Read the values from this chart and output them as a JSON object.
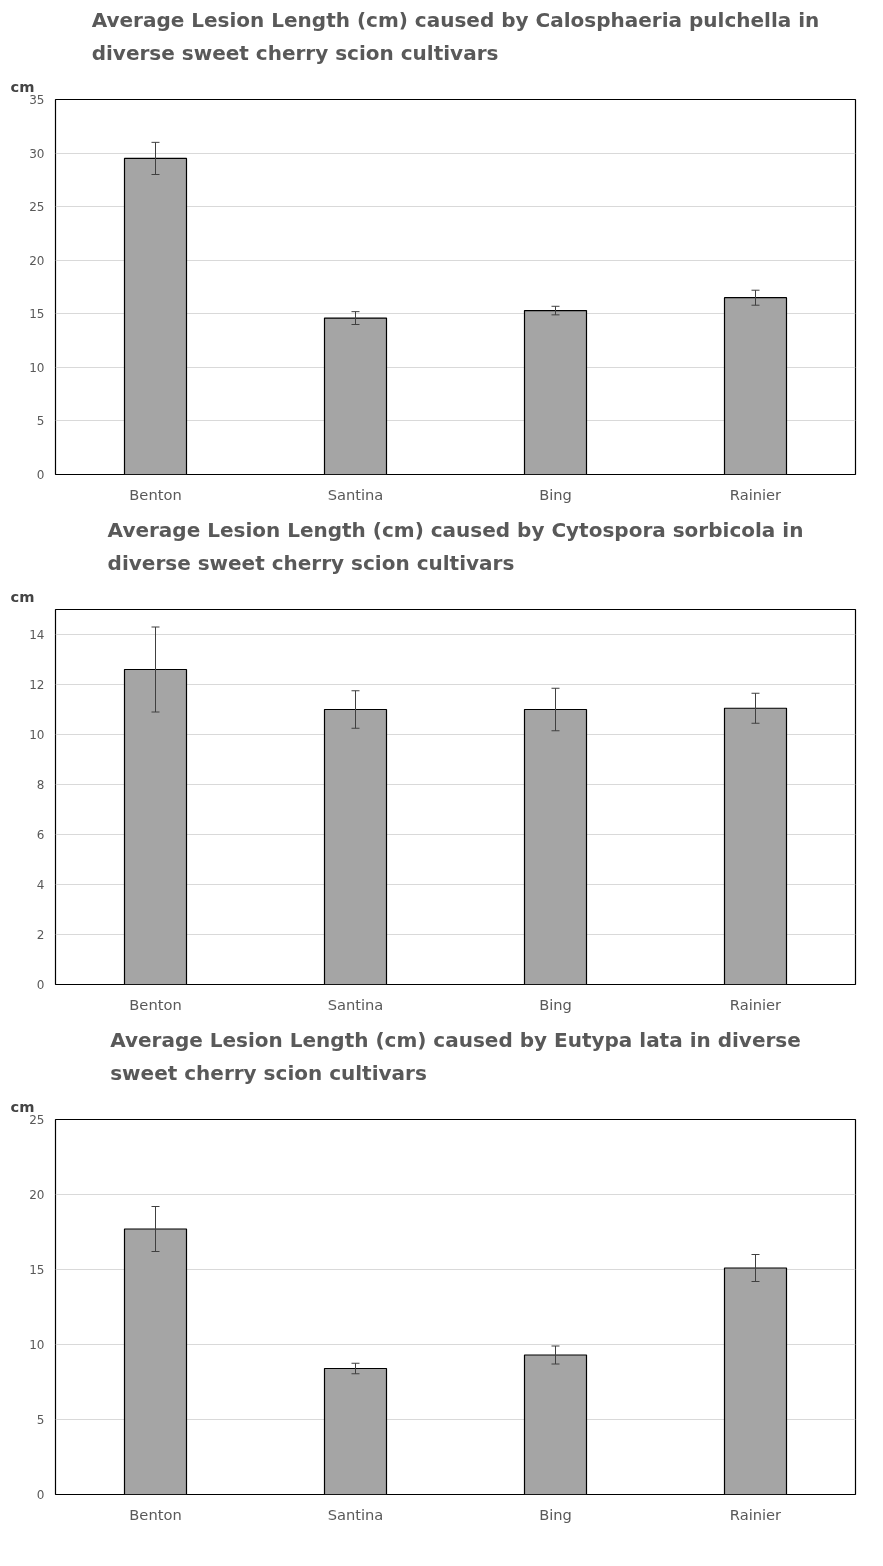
{
  "chart_data": [
    {
      "type": "bar",
      "title": "Average Lesion Length (cm) caused by Calosphaeria pulchella in diverse sweet cherry scion cultivars",
      "ylabel": "cm",
      "categories": [
        "Benton",
        "Santina",
        "Bing",
        "Rainier"
      ],
      "values": [
        29.5,
        14.6,
        15.3,
        16.5
      ],
      "errors": [
        1.5,
        0.6,
        0.4,
        0.7
      ],
      "color": "#a5a5a5",
      "ylim": [
        0,
        35
      ],
      "yticks": [
        0,
        5,
        10,
        15,
        20,
        25,
        30,
        35
      ],
      "grid": "y"
    },
    {
      "type": "bar",
      "title": "Average Lesion Length (cm) caused by Cytospora sorbicola in diverse sweet cherry scion cultivars",
      "ylabel": "cm",
      "categories": [
        "Benton",
        "Santina",
        "Bing",
        "Rainier"
      ],
      "values": [
        12.6,
        11.0,
        11.0,
        11.05
      ],
      "errors": [
        1.7,
        0.75,
        0.85,
        0.6
      ],
      "color": "#a5a5a5",
      "ylim": [
        0,
        15
      ],
      "yticks": [
        0,
        2,
        4,
        6,
        8,
        10,
        12,
        14
      ],
      "grid": "y"
    },
    {
      "type": "bar",
      "title": "Average Lesion Length (cm) caused by Eutypa lata in diverse sweet cherry scion cultivars",
      "ylabel": "cm",
      "categories": [
        "Benton",
        "Santina",
        "Bing",
        "Rainier"
      ],
      "values": [
        17.7,
        8.4,
        9.3,
        15.1
      ],
      "errors": [
        1.5,
        0.35,
        0.6,
        0.9
      ],
      "color": "#a5a5a5",
      "ylim": [
        0,
        25
      ],
      "yticks": [
        0,
        5,
        10,
        15,
        20,
        25
      ],
      "grid": "y"
    }
  ]
}
